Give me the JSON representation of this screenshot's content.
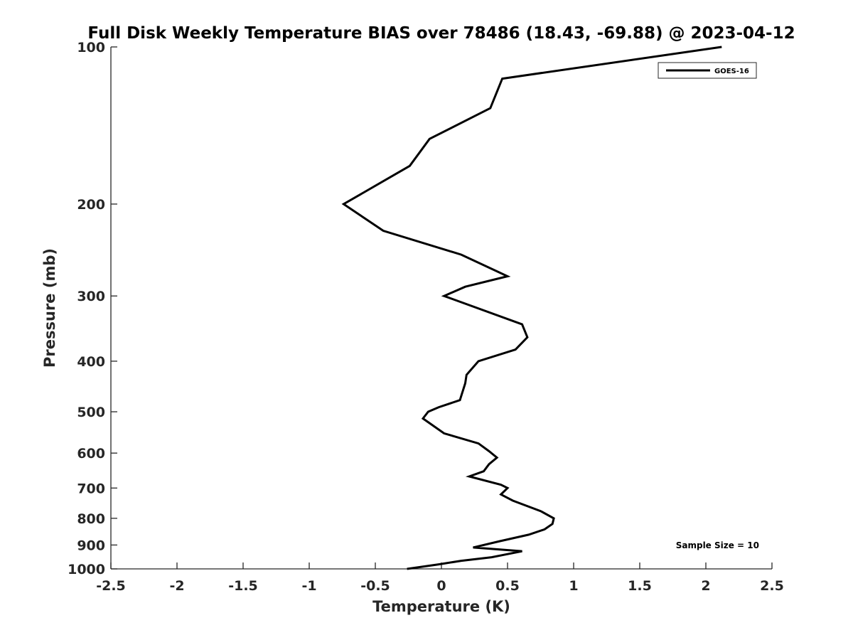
{
  "chart_data": {
    "type": "line",
    "title": "Full Disk Weekly Temperature BIAS over 78486 (18.43, -69.88) @ 2023-04-12",
    "xlabel": "Temperature (K)",
    "ylabel": "Pressure (mb)",
    "xlim": [
      -2.5,
      2.5
    ],
    "ylim": [
      1000,
      100
    ],
    "y_scale": "log",
    "y_reversed": true,
    "x_ticks": [
      "-2.5",
      "-2",
      "-1.5",
      "-1",
      "-0.5",
      "0",
      "0.5",
      "1",
      "1.5",
      "2",
      "2.5"
    ],
    "x_tick_values": [
      -2.5,
      -2,
      -1.5,
      -1,
      -0.5,
      0,
      0.5,
      1,
      1.5,
      2,
      2.5
    ],
    "y_ticks": [
      "100",
      "200",
      "300",
      "400",
      "500",
      "600",
      "700",
      "800",
      "900",
      "1000"
    ],
    "y_tick_values": [
      100,
      200,
      300,
      400,
      500,
      600,
      700,
      800,
      900,
      1000
    ],
    "grid": false,
    "legend_position": "top-right",
    "series": [
      {
        "name": "GOES-16",
        "color": "#000000",
        "x": [
          2.12,
          0.46,
          0.37,
          -0.09,
          -0.24,
          -0.74,
          -0.44,
          0.15,
          0.5,
          0.18,
          0.02,
          0.61,
          0.65,
          0.56,
          0.28,
          0.19,
          0.18,
          0.14,
          -0.02,
          -0.1,
          -0.14,
          0.02,
          0.28,
          0.36,
          0.42,
          0.36,
          0.32,
          0.21,
          0.45,
          0.5,
          0.45,
          0.54,
          0.75,
          0.85,
          0.84,
          0.78,
          0.66,
          0.44,
          0.24,
          0.61,
          0.47,
          0.38,
          0.15,
          -0.02,
          -0.26
        ],
        "y": [
          100,
          115,
          131,
          150,
          169,
          200,
          225,
          250,
          275,
          288,
          300,
          340,
          360,
          380,
          400,
          425,
          441,
          475,
          490,
          500,
          515,
          550,
          575,
          595,
          612,
          630,
          650,
          665,
          690,
          700,
          720,
          740,
          775,
          800,
          820,
          840,
          860,
          885,
          910,
          925,
          940,
          950,
          965,
          980,
          1000
        ]
      }
    ],
    "legend": {
      "entries": [
        "GOES-16"
      ]
    },
    "annotation": {
      "text": "Sample Size = 10",
      "position": "bottom-right"
    }
  }
}
